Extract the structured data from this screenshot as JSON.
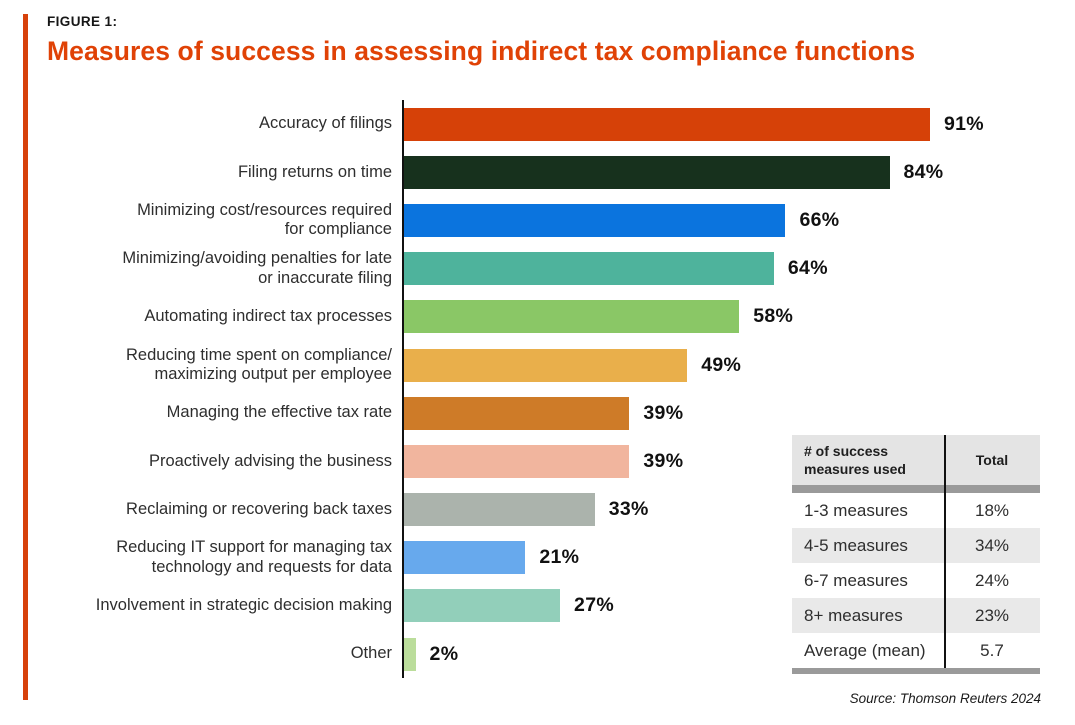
{
  "header": {
    "figure_label": "FIGURE 1:",
    "title": "Measures of success in assessing indirect tax compliance functions"
  },
  "chart_data": {
    "type": "bar",
    "orientation": "horizontal",
    "title": "Measures of success in assessing indirect tax compliance functions",
    "xlabel": "",
    "ylabel": "",
    "xlim": [
      0,
      100
    ],
    "grid": false,
    "legend": false,
    "categories": [
      "Accuracy of filings",
      "Filing returns on time",
      "Minimizing cost/resources required\nfor compliance",
      "Minimizing/avoiding penalties for late\nor inaccurate filing",
      "Automating indirect tax processes",
      "Reducing time spent on compliance/\nmaximizing output per employee",
      "Managing the effective tax rate",
      "Proactively advising the business",
      "Reclaiming or recovering back taxes",
      "Reducing IT support for managing tax\ntechnology and requests for data",
      "Involvement in strategic decision making",
      "Other"
    ],
    "values": [
      91,
      84,
      66,
      64,
      58,
      49,
      39,
      39,
      33,
      21,
      27,
      2
    ],
    "value_labels": [
      "91%",
      "84%",
      "66%",
      "64%",
      "58%",
      "49%",
      "39%",
      "39%",
      "33%",
      "21%",
      "27%",
      "2%"
    ],
    "bar_colors": [
      "#D64108",
      "#17311D",
      "#0B74DE",
      "#4EB39C",
      "#8AC766",
      "#E9AF4B",
      "#CE7B28",
      "#F1B59E",
      "#ABB3AC",
      "#67A9ED",
      "#92CFBA",
      "#BBDD9B"
    ]
  },
  "table": {
    "headers": [
      "# of success\nmeasures used",
      "Total"
    ],
    "rows": [
      {
        "label": "1-3 measures",
        "value": "18%"
      },
      {
        "label": "4-5 measures",
        "value": "34%"
      },
      {
        "label": "6-7 measures",
        "value": "24%"
      },
      {
        "label": "8+ measures",
        "value": "23%"
      },
      {
        "label": "Average (mean)",
        "value": "5.7"
      }
    ]
  },
  "source": "Source: Thomson Reuters 2024",
  "colors": {
    "accent_bar": "#D7410B",
    "title_text": "#E04206",
    "axis_line": "#111111",
    "table_header_bg": "#E4E4E4",
    "table_zebra_bg": "#E9E9E9",
    "table_separator": "#9A9A9A"
  }
}
